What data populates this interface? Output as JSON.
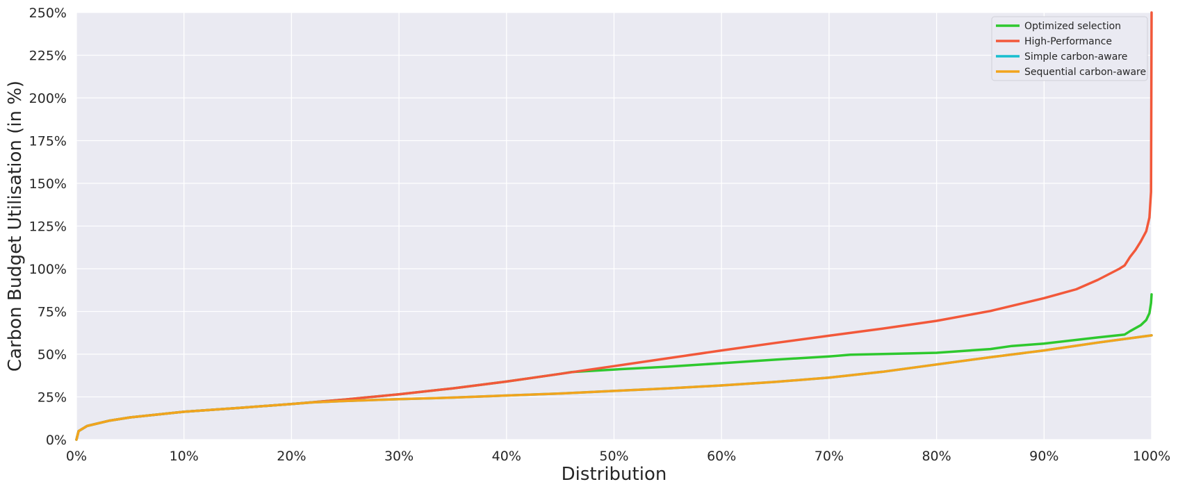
{
  "chart_data": {
    "type": "line",
    "title": "",
    "xlabel": "Distribution",
    "ylabel": "Carbon Budget Utilisation (in %)",
    "xlim": [
      0,
      100
    ],
    "ylim": [
      0,
      250
    ],
    "x_ticks": [
      "0%",
      "10%",
      "20%",
      "30%",
      "40%",
      "50%",
      "60%",
      "70%",
      "80%",
      "90%",
      "100%"
    ],
    "y_ticks": [
      "0%",
      "25%",
      "50%",
      "75%",
      "100%",
      "125%",
      "150%",
      "175%",
      "200%",
      "225%",
      "250%"
    ],
    "grid": true,
    "legend_position": "top-right",
    "background": "#eaeaf2",
    "series": [
      {
        "name": "Optimized selection",
        "color": "#2ec82e",
        "points": [
          [
            0,
            0
          ],
          [
            0.2,
            5
          ],
          [
            1,
            8
          ],
          [
            3,
            11
          ],
          [
            5,
            13
          ],
          [
            10,
            16.3
          ],
          [
            15,
            18.5
          ],
          [
            20,
            20.8
          ],
          [
            25,
            23.5
          ],
          [
            30,
            26.5
          ],
          [
            35,
            30
          ],
          [
            40,
            34
          ],
          [
            45,
            38.5
          ],
          [
            46,
            39.5
          ],
          [
            50,
            41
          ],
          [
            55,
            42.7
          ],
          [
            60,
            44.7
          ],
          [
            65,
            46.8
          ],
          [
            70,
            48.7
          ],
          [
            72,
            49.7
          ],
          [
            75,
            50.1
          ],
          [
            80,
            50.8
          ],
          [
            85,
            53
          ],
          [
            87,
            54.8
          ],
          [
            90,
            56.2
          ],
          [
            95,
            59.8
          ],
          [
            97.5,
            61.5
          ],
          [
            98,
            63.5
          ],
          [
            99,
            67
          ],
          [
            99.5,
            70
          ],
          [
            99.8,
            74
          ],
          [
            99.95,
            80
          ],
          [
            100,
            85
          ]
        ]
      },
      {
        "name": "High-Performance",
        "color": "#f2583a",
        "points": [
          [
            0,
            0
          ],
          [
            0.2,
            5
          ],
          [
            1,
            8
          ],
          [
            3,
            11
          ],
          [
            5,
            13
          ],
          [
            10,
            16.3
          ],
          [
            15,
            18.5
          ],
          [
            20,
            20.8
          ],
          [
            25,
            23.5
          ],
          [
            30,
            26.5
          ],
          [
            35,
            30
          ],
          [
            40,
            34
          ],
          [
            45,
            38.5
          ],
          [
            50,
            43
          ],
          [
            55,
            47.6
          ],
          [
            60,
            52.2
          ],
          [
            65,
            56.6
          ],
          [
            70,
            60.8
          ],
          [
            75,
            65
          ],
          [
            80,
            69.5
          ],
          [
            85,
            75.3
          ],
          [
            90,
            82.8
          ],
          [
            93,
            88
          ],
          [
            95,
            93.5
          ],
          [
            97,
            100
          ],
          [
            97.5,
            102
          ],
          [
            98,
            107
          ],
          [
            98.5,
            111
          ],
          [
            99,
            116
          ],
          [
            99.5,
            122
          ],
          [
            99.8,
            130
          ],
          [
            99.95,
            145
          ],
          [
            100,
            250
          ]
        ]
      },
      {
        "name": "Simple carbon-aware",
        "color": "#17becf",
        "points": [
          [
            0,
            0
          ],
          [
            0.2,
            5
          ],
          [
            1,
            8
          ],
          [
            3,
            11
          ],
          [
            5,
            13
          ],
          [
            10,
            16.3
          ],
          [
            15,
            18.5
          ],
          [
            20,
            20.8
          ],
          [
            22,
            21.8
          ],
          [
            25,
            22.6
          ],
          [
            30,
            23.7
          ],
          [
            35,
            24.6
          ],
          [
            40,
            25.8
          ],
          [
            45,
            27
          ],
          [
            50,
            28.5
          ],
          [
            55,
            30
          ],
          [
            60,
            31.7
          ],
          [
            65,
            33.8
          ],
          [
            70,
            36.3
          ],
          [
            75,
            39.7
          ],
          [
            80,
            44
          ],
          [
            85,
            48.2
          ],
          [
            90,
            52.2
          ],
          [
            95,
            56.8
          ],
          [
            100,
            61
          ]
        ]
      },
      {
        "name": "Sequential carbon-aware",
        "color": "#f2a41d",
        "points": [
          [
            0,
            0
          ],
          [
            0.2,
            5
          ],
          [
            1,
            8
          ],
          [
            3,
            11
          ],
          [
            5,
            13
          ],
          [
            10,
            16.3
          ],
          [
            15,
            18.5
          ],
          [
            20,
            20.8
          ],
          [
            22,
            21.8
          ],
          [
            25,
            22.6
          ],
          [
            30,
            23.7
          ],
          [
            35,
            24.6
          ],
          [
            40,
            25.8
          ],
          [
            45,
            27
          ],
          [
            50,
            28.5
          ],
          [
            55,
            30
          ],
          [
            60,
            31.7
          ],
          [
            65,
            33.8
          ],
          [
            70,
            36.3
          ],
          [
            75,
            39.7
          ],
          [
            80,
            44
          ],
          [
            85,
            48.2
          ],
          [
            90,
            52.2
          ],
          [
            95,
            56.8
          ],
          [
            100,
            61
          ]
        ]
      }
    ]
  }
}
